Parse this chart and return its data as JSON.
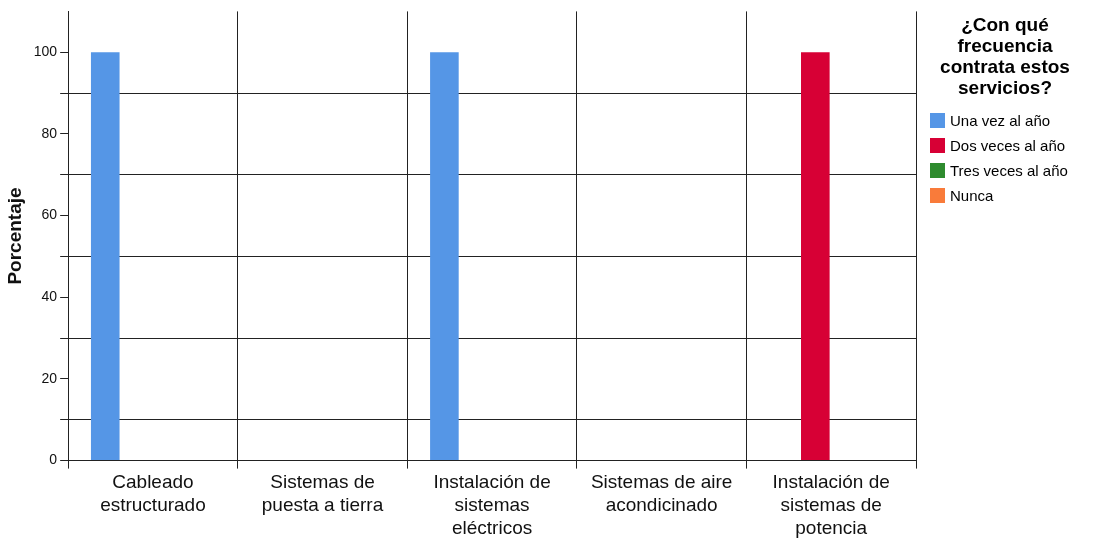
{
  "chart_data": {
    "type": "bar",
    "ylabel": "Porcentaje",
    "legend_title": "¿Con qué frecuencia contrata estos servicios?",
    "categories": [
      "Cableado estructurado",
      "Sistemas de puesta a tierra",
      "Instalación de sistemas eléctricos",
      "Sistemas de aire acondicinado",
      "Instalación de sistemas de potencia"
    ],
    "series": [
      {
        "name": "Una vez al año",
        "color": "#5596e6",
        "values": [
          100,
          null,
          100,
          null,
          null
        ]
      },
      {
        "name": "Dos veces al año",
        "color": "#d70035",
        "values": [
          null,
          null,
          null,
          null,
          100
        ]
      },
      {
        "name": "Tres veces al año",
        "color": "#2e8b2e",
        "values": [
          null,
          null,
          null,
          null,
          null
        ]
      },
      {
        "name": "Nunca",
        "color": "#f97b3a",
        "values": [
          null,
          null,
          null,
          null,
          null
        ]
      }
    ],
    "ylim": [
      0,
      110
    ],
    "yticks": [
      0,
      {
        "value": 10,
        "label": null
      },
      20,
      {
        "value": 30,
        "label": null
      },
      40,
      {
        "value": 50,
        "label": null
      },
      60,
      {
        "value": 70,
        "label": null
      },
      80,
      {
        "value": 90,
        "label": null
      },
      100
    ],
    "grid": true,
    "legend": "right"
  }
}
